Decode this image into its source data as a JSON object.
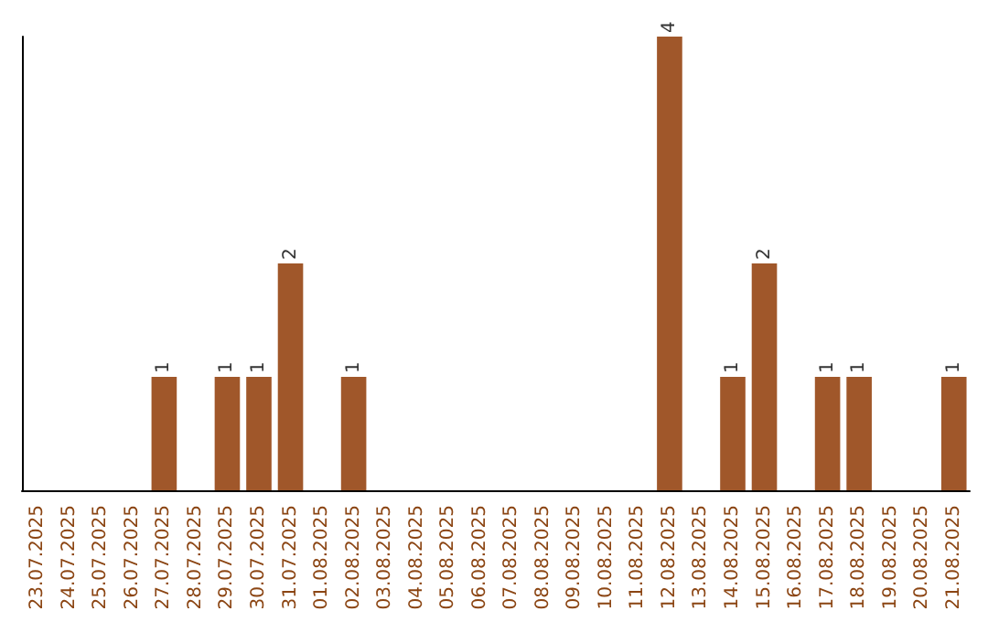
{
  "chart_data": {
    "type": "bar",
    "categories": [
      "23.07.2025",
      "24.07.2025",
      "25.07.2025",
      "26.07.2025",
      "27.07.2025",
      "28.07.2025",
      "29.07.2025",
      "30.07.2025",
      "31.07.2025",
      "01.08.2025",
      "02.08.2025",
      "03.08.2025",
      "04.08.2025",
      "05.08.2025",
      "06.08.2025",
      "07.08.2025",
      "08.08.2025",
      "09.08.2025",
      "10.08.2025",
      "11.08.2025",
      "12.08.2025",
      "13.08.2025",
      "14.08.2025",
      "15.08.2025",
      "16.08.2025",
      "17.08.2025",
      "18.08.2025",
      "19.08.2025",
      "20.08.2025",
      "21.08.2025"
    ],
    "values": [
      0,
      0,
      0,
      0,
      1,
      0,
      1,
      1,
      2,
      0,
      1,
      0,
      0,
      0,
      0,
      0,
      0,
      0,
      0,
      0,
      4,
      0,
      1,
      2,
      0,
      1,
      1,
      0,
      0,
      1
    ],
    "value_labels": [
      null,
      null,
      null,
      null,
      "1",
      null,
      "1",
      "1",
      "2",
      null,
      "1",
      null,
      null,
      null,
      null,
      null,
      null,
      null,
      null,
      null,
      "4",
      null,
      "1",
      "2",
      null,
      "1",
      "1",
      null,
      null,
      "1"
    ],
    "color": "#a0572a",
    "grid": false,
    "tick_labels": "x"
  }
}
